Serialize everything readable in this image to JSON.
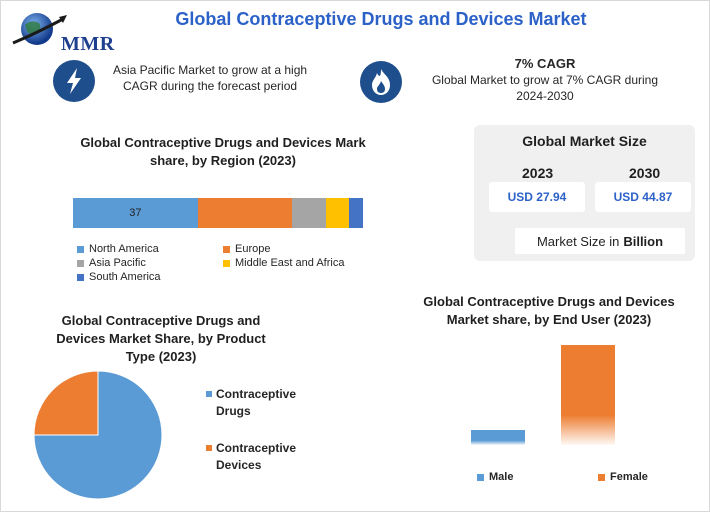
{
  "brand": {
    "logo_text": "MMR"
  },
  "header": {
    "title": "Global Contraceptive Drugs and Devices Market"
  },
  "highlights": {
    "asia_pacific": {
      "icon": "lightning-icon",
      "text": "Asia Pacific Market to grow at a high CAGR during the forecast period"
    },
    "cagr": {
      "icon": "flame-icon",
      "title": "7% CAGR",
      "text": "Global Market to grow at 7% CAGR during 2024-2030"
    }
  },
  "market_size": {
    "title": "Global Market Size",
    "year_2023": "2023",
    "year_2030": "2030",
    "value_2023": "USD 27.94",
    "value_2030": "USD 44.87",
    "unit_prefix": "Market Size in",
    "unit": "Billion"
  },
  "colors": {
    "blue": "#5b9bd5",
    "orange": "#ed7d31",
    "gray": "#a5a5a5",
    "yellow": "#ffc000",
    "dark_blue": "#4472c4"
  },
  "chart_data": [
    {
      "type": "bar",
      "stacked": true,
      "orientation": "horizontal",
      "title": "Global Contraceptive Drugs and Devices Mark share, by Region (2023)",
      "categories": [
        ""
      ],
      "series": [
        {
          "name": "North America",
          "values": [
            37
          ],
          "color": "#5b9bd5",
          "data_label": "37"
        },
        {
          "name": "Europe",
          "values": [
            28
          ],
          "color": "#ed7d31"
        },
        {
          "name": "Asia Pacific",
          "values": [
            10
          ],
          "color": "#a5a5a5"
        },
        {
          "name": "Middle East and Africa",
          "values": [
            7
          ],
          "color": "#ffc000"
        },
        {
          "name": "South America",
          "values": [
            4
          ],
          "color": "#4472c4"
        }
      ],
      "legend": "bottom"
    },
    {
      "type": "pie",
      "title": "Global Contraceptive Drugs and Devices Market Share, by Product Type (2023)",
      "labels": [
        "Contraceptive Drugs",
        "Contraceptive Devices"
      ],
      "values": [
        75,
        25
      ],
      "colors": [
        "#5b9bd5",
        "#ed7d31"
      ],
      "legend": "right"
    },
    {
      "type": "bar",
      "title": "Global Contraceptive Drugs and Devices Market share, by End User (2023)",
      "categories": [
        "Male",
        "Female"
      ],
      "values": [
        15,
        100
      ],
      "colors": [
        "#5b9bd5",
        "#ed7d31"
      ],
      "style": "gradient fade",
      "legend": "bottom"
    }
  ]
}
